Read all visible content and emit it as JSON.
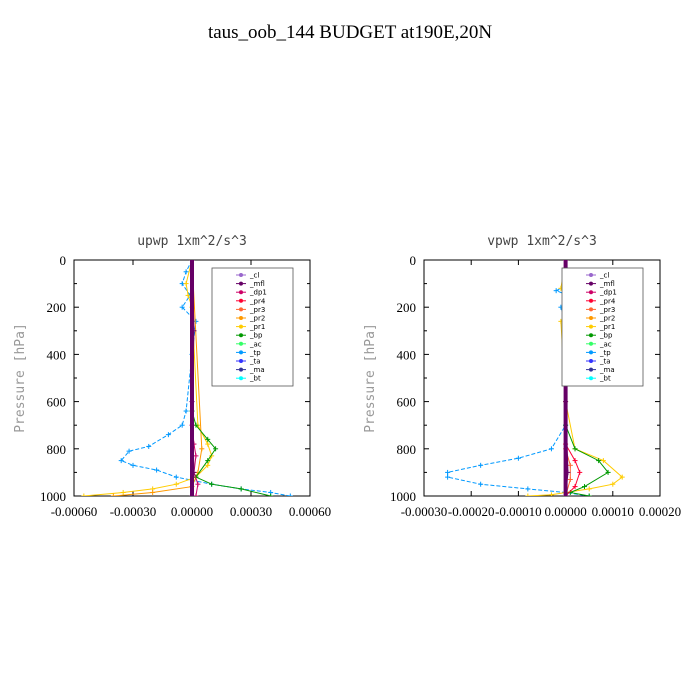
{
  "figure": {
    "title": "taus_oob_144  BUDGET at190E,20N"
  },
  "legend_colors": {
    "_cl": "#9966cc",
    "_mfl": "#660066",
    "_dp1": "#cc0066",
    "_pr4": "#ff0033",
    "_pr3": "#ff6633",
    "_pr2": "#ff9900",
    "_pr1": "#ffcc00",
    "_bp": "#009900",
    "_ac": "#33ff66",
    "_tp": "#0099ff",
    "_ta": "#3333ff",
    "_ma": "#333399",
    "_bt": "#00ffff"
  },
  "chart_data": [
    {
      "type": "line",
      "title": "upwp   1xm^2/s^3",
      "ylabel": "Pressure [hPa]",
      "xlim": [
        -0.0006,
        0.0006
      ],
      "ylim": [
        0,
        1000
      ],
      "y_inverted": true,
      "xticks": [
        "-0.00060",
        "-0.00030",
        "0.00000",
        "0.00030",
        "0.00060"
      ],
      "yticks": [
        "0",
        "200",
        "400",
        "600",
        "800",
        "1000"
      ],
      "legend_position": "top-right",
      "legend": [
        "_cl",
        "_mfl",
        "_dp1",
        "_pr4",
        "_pr3",
        "_pr2",
        "_pr1",
        "_bp",
        "_ac",
        "_tp",
        "_ta",
        "_ma",
        "_bt"
      ],
      "series": [
        {
          "name": "_tp",
          "x": [
            0,
            -3e-05,
            -5e-05,
            -1e-05,
            -5e-05,
            2e-05,
            0,
            -3e-05,
            -5e-05,
            -0.00012,
            -0.00022,
            -0.00032,
            -0.00036,
            -0.0003,
            -0.00018,
            -8e-05,
            0.0001,
            0.00025,
            0.0004,
            0.0005
          ],
          "y": [
            0,
            50,
            100,
            150,
            200,
            260,
            400,
            640,
            700,
            740,
            790,
            810,
            850,
            870,
            890,
            920,
            950,
            970,
            985,
            1000
          ]
        },
        {
          "name": "_pr1",
          "x": [
            0,
            -3e-05,
            -2e-05,
            0,
            3e-05,
            8e-05,
            0.0001,
            8e-05,
            2e-05,
            -8e-05,
            -0.0002,
            -0.00035,
            -0.00055
          ],
          "y": [
            0,
            100,
            150,
            200,
            700,
            780,
            830,
            870,
            920,
            950,
            970,
            985,
            1000
          ]
        },
        {
          "name": "_pr2",
          "x": [
            0,
            5e-05,
            3e-05,
            0,
            -0.0002,
            -0.0004
          ],
          "y": [
            0,
            800,
            900,
            960,
            985,
            1000
          ]
        },
        {
          "name": "_bp",
          "x": [
            0,
            0,
            2e-05,
            8e-05,
            0.00012,
            8e-05,
            2e-05,
            0.0001,
            0.00025,
            0.0004
          ],
          "y": [
            0,
            640,
            700,
            760,
            800,
            850,
            920,
            950,
            970,
            1000
          ]
        },
        {
          "name": "_dp1",
          "x": [
            0,
            0,
            1e-05,
            2e-05,
            1e-05,
            3e-05,
            2e-05
          ],
          "y": [
            0,
            700,
            780,
            830,
            900,
            950,
            1000
          ]
        },
        {
          "name": "_mfl",
          "x": [
            0,
            1e-05,
            0,
            1e-05,
            0
          ],
          "y": [
            0,
            300,
            600,
            900,
            1000
          ]
        }
      ]
    },
    {
      "type": "line",
      "title": "vpwp   1xm^2/s^3",
      "ylabel": "Pressure [hPa]",
      "xlim": [
        -0.0003,
        0.0002
      ],
      "ylim": [
        0,
        1000
      ],
      "y_inverted": true,
      "xticks": [
        "-0.00030",
        "-0.00020",
        "-0.00010",
        "0.00000",
        "0.00010",
        "0.00020"
      ],
      "yticks": [
        "0",
        "200",
        "400",
        "600",
        "800",
        "1000"
      ],
      "legend_position": "top-right",
      "legend": [
        "_cl",
        "_mfl",
        "_dp1",
        "_pr4",
        "_pr3",
        "_pr2",
        "_pr1",
        "_bp",
        "_ac",
        "_tp",
        "_ta",
        "_ma",
        "_bt"
      ],
      "series": [
        {
          "name": "_tp",
          "x": [
            0,
            1e-05,
            -2e-05,
            2e-05,
            -1e-05,
            0,
            0,
            -3e-05,
            -0.0001,
            -0.00018,
            -0.00025,
            -0.00025,
            -0.00018,
            -8e-05,
            0,
            5e-05
          ],
          "y": [
            0,
            100,
            130,
            160,
            200,
            260,
            700,
            800,
            840,
            870,
            900,
            920,
            950,
            970,
            985,
            1000
          ]
        },
        {
          "name": "_pr1",
          "x": [
            0,
            -1e-05,
            0,
            1e-05,
            -1e-05,
            0,
            2e-05,
            8e-05,
            0.00012,
            0.0001,
            5e-05,
            0,
            -3e-05,
            -8e-05
          ],
          "y": [
            0,
            120,
            150,
            220,
            260,
            600,
            800,
            850,
            920,
            950,
            970,
            985,
            995,
            1000
          ]
        },
        {
          "name": "_bp",
          "x": [
            0,
            0,
            2e-05,
            7e-05,
            9e-05,
            4e-05,
            1e-05,
            5e-05
          ],
          "y": [
            0,
            700,
            800,
            850,
            900,
            960,
            985,
            1000
          ]
        },
        {
          "name": "_pr4",
          "x": [
            0,
            0,
            2e-05,
            3e-05,
            2e-05,
            0
          ],
          "y": [
            0,
            780,
            850,
            900,
            960,
            1000
          ]
        },
        {
          "name": "_pr3",
          "x": [
            0,
            0,
            1e-05,
            1e-05,
            0
          ],
          "y": [
            0,
            800,
            870,
            930,
            1000
          ]
        },
        {
          "name": "_mfl",
          "x": [
            0,
            5e-06,
            0,
            5e-06,
            0
          ],
          "y": [
            0,
            300,
            600,
            900,
            1000
          ]
        }
      ]
    }
  ]
}
